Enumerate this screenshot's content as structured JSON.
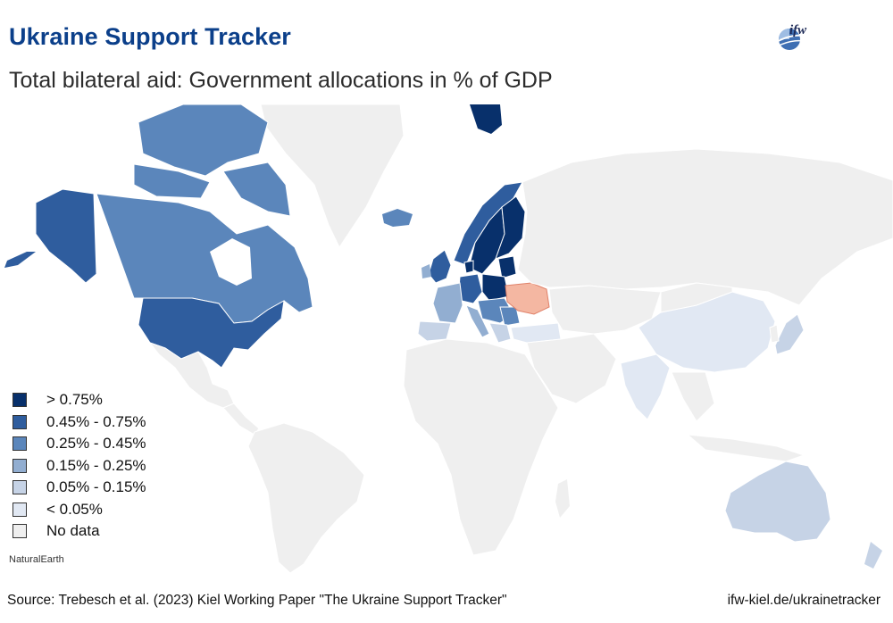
{
  "header": {
    "title": "Ukraine Support Tracker",
    "subtitle": "Total bilateral aid: Government allocations in % of GDP",
    "logo_text": "ifw"
  },
  "legend": {
    "items": [
      {
        "label": "> 0.75%",
        "color": "#08306b"
      },
      {
        "label": "0.45% - 0.75%",
        "color": "#2f5d9e"
      },
      {
        "label": "0.25% - 0.45%",
        "color": "#5b86bb"
      },
      {
        "label": "0.15% - 0.25%",
        "color": "#92aed1"
      },
      {
        "label": "0.05% - 0.15%",
        "color": "#c6d3e6"
      },
      {
        "label": "< 0.05%",
        "color": "#e1e8f3"
      },
      {
        "label": "No data",
        "color": "#efefef"
      }
    ]
  },
  "map": {
    "ukraine_color": "#f4b7a2",
    "no_data_color": "#efefef",
    "attribution": "NaturalEarth",
    "regions": [
      {
        "name": "Alaska",
        "bin": "0.45% - 0.75%"
      },
      {
        "name": "United States",
        "bin": "0.45% - 0.75%"
      },
      {
        "name": "Canada",
        "bin": "0.25% - 0.45%"
      },
      {
        "name": "United Kingdom",
        "bin": "0.45% - 0.75%"
      },
      {
        "name": "Norway",
        "bin": "0.45% - 0.75%"
      },
      {
        "name": "Sweden",
        "bin": "> 0.75%"
      },
      {
        "name": "Finland",
        "bin": "> 0.75%"
      },
      {
        "name": "Poland",
        "bin": "> 0.75%"
      },
      {
        "name": "Baltics",
        "bin": "> 0.75%"
      },
      {
        "name": "Germany",
        "bin": "0.45% - 0.75%"
      },
      {
        "name": "France",
        "bin": "0.15% - 0.25%"
      },
      {
        "name": "Spain",
        "bin": "0.05% - 0.15%"
      },
      {
        "name": "Italy",
        "bin": "0.15% - 0.25%"
      },
      {
        "name": "Turkey",
        "bin": "< 0.05%"
      },
      {
        "name": "China",
        "bin": "< 0.05%"
      },
      {
        "name": "India",
        "bin": "< 0.05%"
      },
      {
        "name": "Japan",
        "bin": "0.05% - 0.15%"
      },
      {
        "name": "Australia",
        "bin": "0.05% - 0.15%"
      },
      {
        "name": "Iceland",
        "bin": "0.25% - 0.45%"
      },
      {
        "name": "Ukraine",
        "bin": "recipient"
      }
    ]
  },
  "footer": {
    "source": "Source: Trebesch et al. (2023) Kiel Working Paper \"The Ukraine Support Tracker\"",
    "url": "ifw-kiel.de/ukrainetracker"
  }
}
